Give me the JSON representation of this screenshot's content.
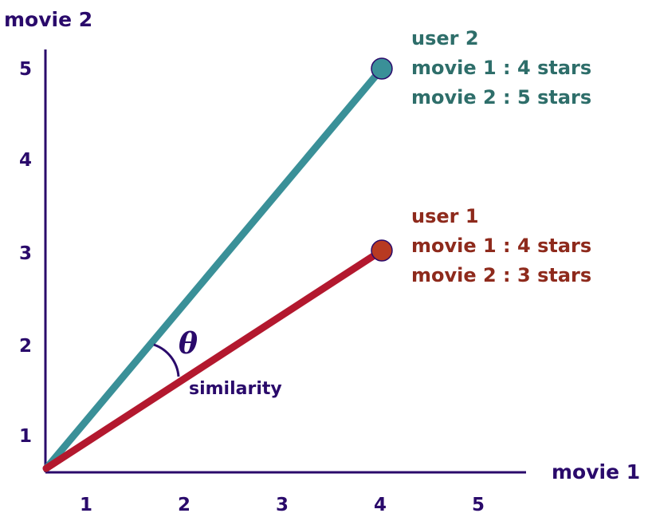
{
  "axes": {
    "x_label": "movie 1",
    "y_label": "movie 2",
    "x_ticks": [
      "1",
      "2",
      "3",
      "4",
      "5"
    ],
    "y_ticks": [
      "1",
      "2",
      "3",
      "4",
      "5"
    ]
  },
  "users": [
    {
      "name": "user 2",
      "line1": "movie 1 : 4 stars",
      "line2": "movie 2 : 5 stars",
      "movie1": 4,
      "movie2": 5,
      "line_color": "#3a9098",
      "text_color": "#2e6e6a"
    },
    {
      "name": "user 1",
      "line1": "movie 1 : 4 stars",
      "line2": "movie 2 : 3 stars",
      "movie1": 4,
      "movie2": 3,
      "line_color": "#b3182e",
      "text_color": "#8e2a1c"
    }
  ],
  "angle": {
    "symbol": "θ",
    "label": "similarity"
  },
  "colors": {
    "axis": "#2a0a6b",
    "user2_point": "#3a9098",
    "user1_point": "#b83a22"
  }
}
